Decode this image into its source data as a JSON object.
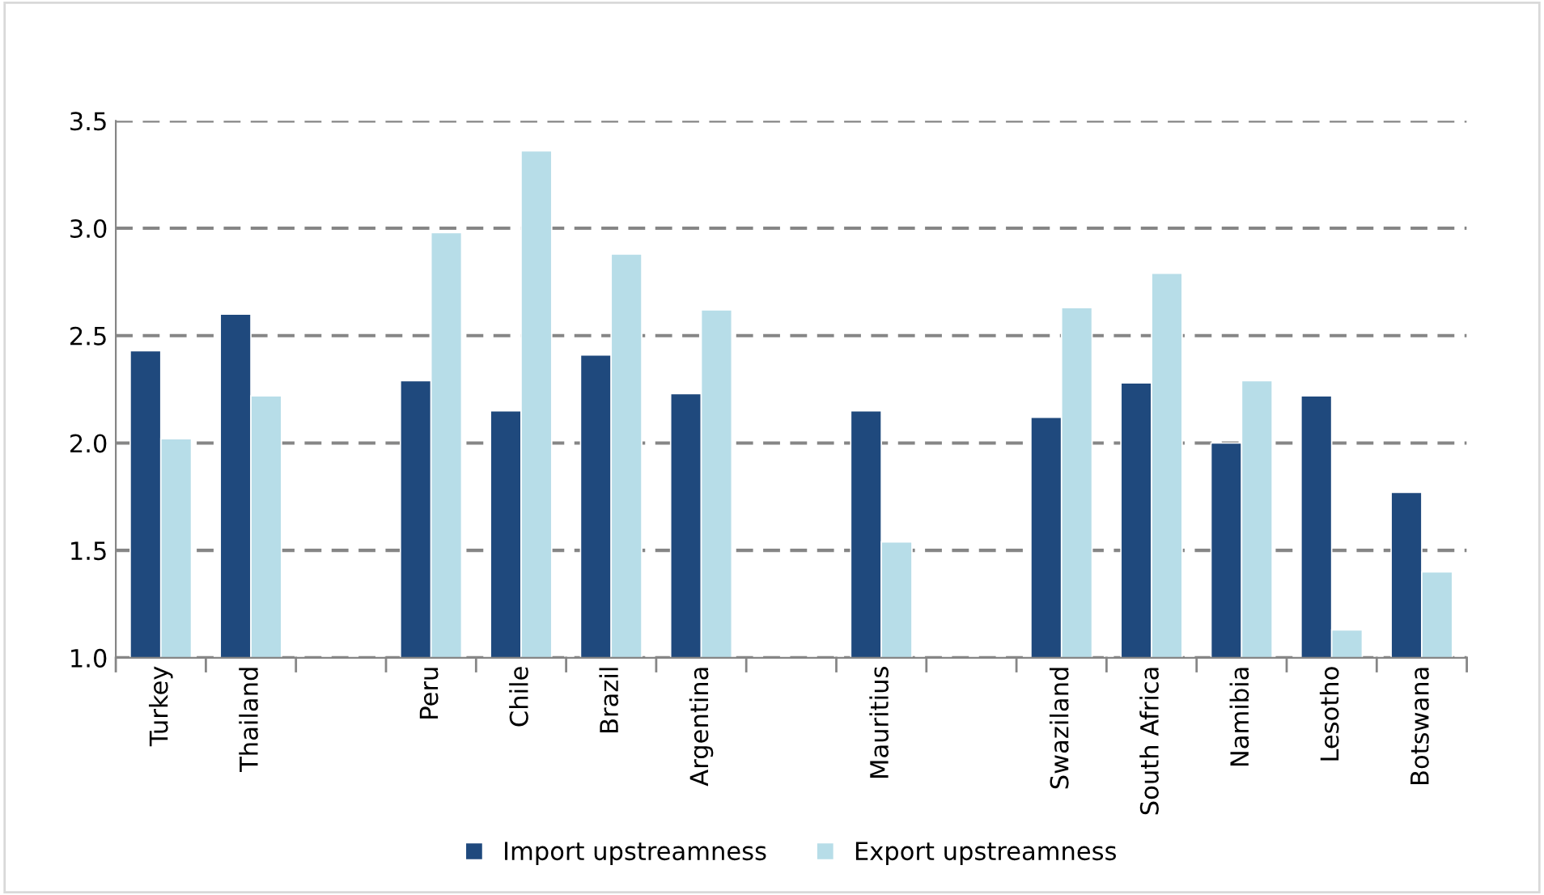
{
  "chart_data": {
    "type": "bar",
    "categories": [
      "Turkey",
      "Thailand",
      null,
      "Peru",
      "Chile",
      "Brazil",
      "Argentina",
      null,
      "Mauritius",
      null,
      "Swaziland",
      "South Africa",
      "Namibia",
      "Lesotho",
      "Botswana"
    ],
    "series": [
      {
        "name": "Import upstreamness",
        "color": "#1f497d",
        "values": [
          2.43,
          2.6,
          null,
          2.29,
          2.15,
          2.41,
          2.23,
          null,
          2.15,
          null,
          2.12,
          2.28,
          2.0,
          2.22,
          1.77
        ]
      },
      {
        "name": "Export upstreamness",
        "color": "#b7dde8",
        "values": [
          2.02,
          2.22,
          null,
          2.98,
          3.36,
          2.88,
          2.62,
          null,
          1.54,
          null,
          2.63,
          2.79,
          2.29,
          1.13,
          1.4
        ]
      }
    ],
    "ylim": [
      1.0,
      3.5
    ],
    "yticks": [
      {
        "value": 1.0,
        "label": "1.0"
      },
      {
        "value": 1.5,
        "label": "1.5"
      },
      {
        "value": 2.0,
        "label": "2.0"
      },
      {
        "value": 2.5,
        "label": "2.5"
      },
      {
        "value": 3.0,
        "label": "3.0"
      },
      {
        "value": 3.5,
        "label": "3.5"
      }
    ],
    "grid": "y",
    "legend": "bottom"
  }
}
